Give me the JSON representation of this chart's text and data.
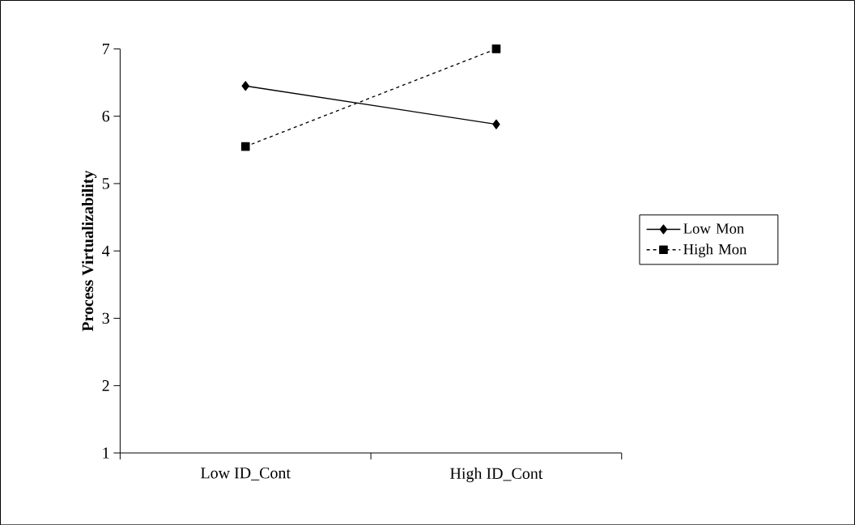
{
  "chart_data": {
    "type": "line",
    "ylabel": "Process Virtualizability",
    "categories": [
      "Low ID_Cont",
      "High ID_Cont"
    ],
    "series": [
      {
        "name": "Low Mon",
        "color": "#000000",
        "values": [
          6.45,
          5.88
        ],
        "marker": "diamond",
        "line_style": "solid"
      },
      {
        "name": "High Mon",
        "color": "#000000",
        "values": [
          5.55,
          7.0
        ],
        "marker": "square",
        "line_style": "dashed"
      }
    ],
    "ylim": [
      1,
      7
    ],
    "yticks": [
      1,
      2,
      3,
      4,
      5,
      6,
      7
    ],
    "grid": false,
    "legend": "right"
  }
}
